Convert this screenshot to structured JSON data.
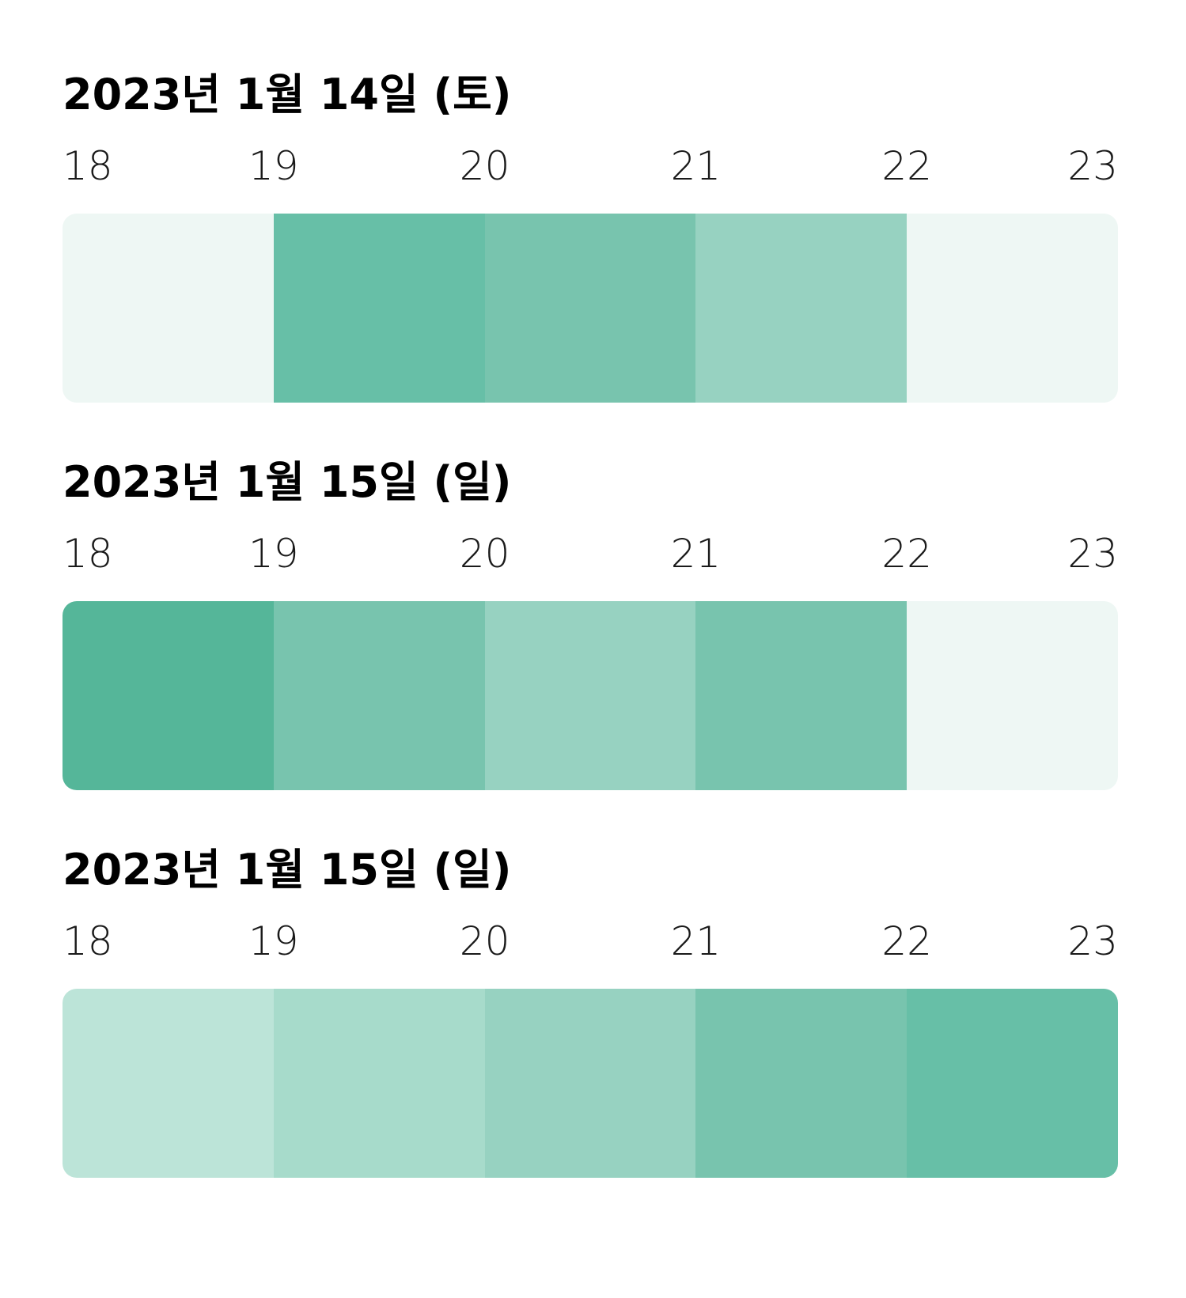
{
  "colors": {
    "level_0": "#eef7f4",
    "level_1": "#bce4d8",
    "level_2": "#a7dbcb",
    "level_3": "#97d2c1",
    "level_4": "#78c4ae",
    "level_5": "#67bfa7",
    "level_6": "#55b699"
  },
  "chart_data": [
    {
      "type": "heatmap",
      "title": "2023년 1월 14일 (토)",
      "hours": [
        "18",
        "19",
        "20",
        "21",
        "22",
        "23"
      ],
      "slots": [
        {
          "from": "18",
          "to": "19",
          "level": 0
        },
        {
          "from": "19",
          "to": "20",
          "level": 5
        },
        {
          "from": "20",
          "to": "21",
          "level": 4
        },
        {
          "from": "21",
          "to": "22",
          "level": 3
        },
        {
          "from": "22",
          "to": "23",
          "level": 0
        }
      ]
    },
    {
      "type": "heatmap",
      "title": "2023년 1월 15일 (일)",
      "hours": [
        "18",
        "19",
        "20",
        "21",
        "22",
        "23"
      ],
      "slots": [
        {
          "from": "18",
          "to": "19",
          "level": 6
        },
        {
          "from": "19",
          "to": "20",
          "level": 4
        },
        {
          "from": "20",
          "to": "21",
          "level": 3
        },
        {
          "from": "21",
          "to": "22",
          "level": 4
        },
        {
          "from": "22",
          "to": "23",
          "level": 0
        }
      ]
    },
    {
      "type": "heatmap",
      "title": "2023년 1월 15일 (일)",
      "hours": [
        "18",
        "19",
        "20",
        "21",
        "22",
        "23"
      ],
      "slots": [
        {
          "from": "18",
          "to": "19",
          "level": 1
        },
        {
          "from": "19",
          "to": "20",
          "level": 2
        },
        {
          "from": "20",
          "to": "21",
          "level": 3
        },
        {
          "from": "21",
          "to": "22",
          "level": 4
        },
        {
          "from": "22",
          "to": "23",
          "level": 5
        }
      ]
    }
  ]
}
